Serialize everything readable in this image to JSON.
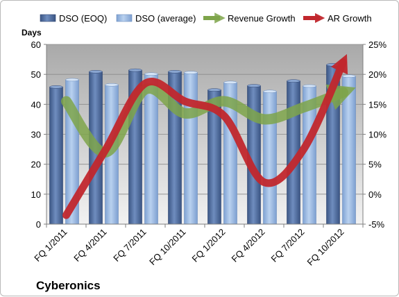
{
  "chart_data": {
    "type": "bar",
    "title": "Cyberonics",
    "ylabel_left": "Days",
    "categories": [
      "FQ 1/2011",
      "FQ 4/2011",
      "FQ 7/2011",
      "FQ 10/2011",
      "FQ 1/2012",
      "FQ 4/2012",
      "FQ 7/2012",
      "FQ 10/2012"
    ],
    "left_axis": {
      "min": 0,
      "max": 60,
      "step": 10,
      "ticks": [
        "0",
        "10",
        "20",
        "30",
        "40",
        "50",
        "60"
      ]
    },
    "right_axis": {
      "min": -5,
      "max": 25,
      "step": 5,
      "ticks": [
        "-5%",
        "0%",
        "5%",
        "10%",
        "15%",
        "20%",
        "25%"
      ]
    },
    "series": [
      {
        "name": "DSO (EOQ)",
        "kind": "bar",
        "axis": "left",
        "color": "#4f6d9f",
        "values": [
          45.8,
          50.9,
          51.4,
          50.9,
          44.8,
          46.2,
          47.8,
          53.2
        ]
      },
      {
        "name": "DSO (average)",
        "kind": "bar",
        "axis": "left",
        "color": "#8fb1df",
        "values": [
          48.2,
          46.5,
          50.1,
          50.6,
          47.3,
          44.3,
          46.1,
          49.4
        ]
      },
      {
        "name": "Revenue Growth",
        "kind": "line",
        "axis": "right",
        "color": "#7ea44a",
        "values": [
          15.5,
          7.0,
          17.5,
          13.5,
          15.5,
          12.5,
          14.5,
          17.0
        ]
      },
      {
        "name": "AR Growth",
        "kind": "line",
        "axis": "right",
        "color": "#c1272d",
        "values": [
          -3.5,
          7.5,
          18.5,
          15.5,
          13.0,
          2.0,
          7.5,
          22.0
        ]
      }
    ],
    "grid": true,
    "legend_position": "top",
    "plot_background": "#c0c0c0"
  }
}
